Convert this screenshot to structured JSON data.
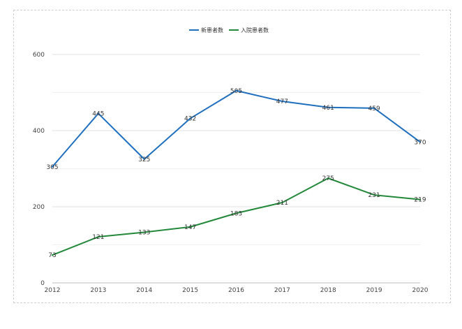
{
  "chart_data": {
    "type": "line",
    "categories": [
      "2012",
      "2013",
      "2014",
      "2015",
      "2016",
      "2017",
      "2018",
      "2019",
      "2020"
    ],
    "series": [
      {
        "name": "新患者数",
        "values": [
          305,
          445,
          325,
          432,
          505,
          477,
          461,
          459,
          370
        ],
        "color": "#1f6fbf"
      },
      {
        "name": "入院患者数",
        "values": [
          73,
          121,
          133,
          147,
          183,
          211,
          275,
          231,
          219
        ],
        "color": "#23893a"
      }
    ],
    "ylim": [
      0,
      600
    ],
    "yticks": [
      0,
      200,
      400,
      600
    ],
    "grid": true,
    "minor_grid": true,
    "legend": "top-center",
    "data_labels": true
  }
}
